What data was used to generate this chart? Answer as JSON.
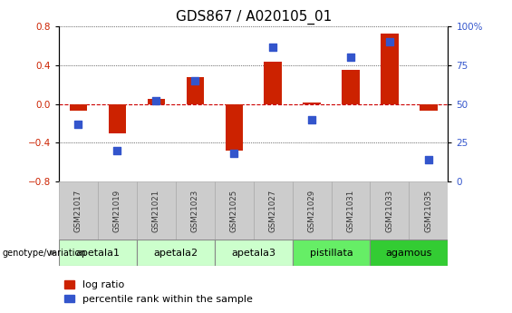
{
  "title": "GDS867 / A020105_01",
  "samples": [
    "GSM21017",
    "GSM21019",
    "GSM21021",
    "GSM21023",
    "GSM21025",
    "GSM21027",
    "GSM21029",
    "GSM21031",
    "GSM21033",
    "GSM21035"
  ],
  "log_ratio": [
    -0.07,
    -0.3,
    0.05,
    0.28,
    -0.48,
    0.44,
    0.02,
    0.35,
    0.73,
    -0.07
  ],
  "percentile_rank": [
    37,
    20,
    52,
    65,
    18,
    87,
    40,
    80,
    90,
    14
  ],
  "groups": [
    {
      "label": "apetala1",
      "indices": [
        0,
        1
      ],
      "color": "#ccffcc"
    },
    {
      "label": "apetala2",
      "indices": [
        2,
        3
      ],
      "color": "#ccffcc"
    },
    {
      "label": "apetala3",
      "indices": [
        4,
        5
      ],
      "color": "#ccffcc"
    },
    {
      "label": "pistillata",
      "indices": [
        6,
        7
      ],
      "color": "#66ee66"
    },
    {
      "label": "agamous",
      "indices": [
        8,
        9
      ],
      "color": "#33cc33"
    }
  ],
  "ylim_left": [
    -0.8,
    0.8
  ],
  "ylim_right": [
    0,
    100
  ],
  "yticks_left": [
    -0.8,
    -0.4,
    0.0,
    0.4,
    0.8
  ],
  "yticks_right": [
    0,
    25,
    50,
    75,
    100
  ],
  "ytick_labels_right": [
    "0",
    "25",
    "50",
    "75",
    "100%"
  ],
  "bar_color": "#cc2200",
  "dot_color": "#3355cc",
  "bar_width": 0.45,
  "dot_size": 35,
  "zero_line_color": "#cc0000",
  "header_color": "#cccccc",
  "title_fontsize": 11,
  "tick_fontsize": 7.5,
  "label_fontsize": 8,
  "legend_fontsize": 8
}
